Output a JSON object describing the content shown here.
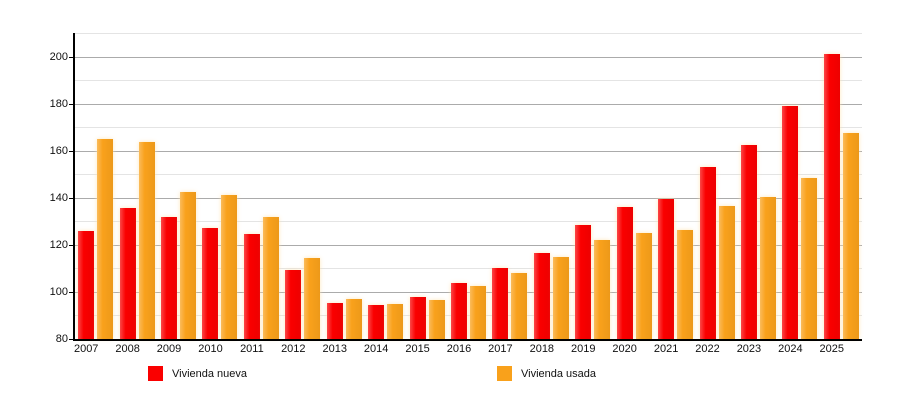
{
  "chart_data": {
    "type": "bar",
    "title": "",
    "xlabel": "",
    "ylabel": "",
    "categories": [
      "2007",
      "2008",
      "2009",
      "2010",
      "2011",
      "2012",
      "2013",
      "2014",
      "2015",
      "2016",
      "2017",
      "2018",
      "2019",
      "2020",
      "2021",
      "2022",
      "2023",
      "2024",
      "2025"
    ],
    "series": [
      {
        "name": "Vivienda nueva",
        "key": "vivienda-nueva",
        "color": "#fa0000",
        "values": [
          126,
          135.5,
          132,
          127,
          124.5,
          109.5,
          95.5,
          94.5,
          98,
          104,
          110,
          116.5,
          128.5,
          136,
          139.5,
          153,
          162.5,
          179,
          201
        ]
      },
      {
        "name": "Vivienda usada",
        "key": "vivienda-usada",
        "color": "#f9a11b",
        "values": [
          165,
          163.5,
          142.5,
          141,
          132,
          114.5,
          97,
          95,
          96.5,
          102.5,
          108,
          115,
          122,
          125,
          126.5,
          136.5,
          140.5,
          148.5,
          167.5
        ]
      }
    ],
    "ylim": [
      80,
      210
    ],
    "yticks": [
      80,
      100,
      120,
      140,
      160,
      180,
      200
    ],
    "grid": {
      "orientation": "horizontal",
      "minor_step": 10,
      "major_step": 20,
      "minor_color": "#e4e4e4",
      "major_color": "#ababab"
    },
    "axis_color": "#000000",
    "legend_position": "bottom"
  }
}
